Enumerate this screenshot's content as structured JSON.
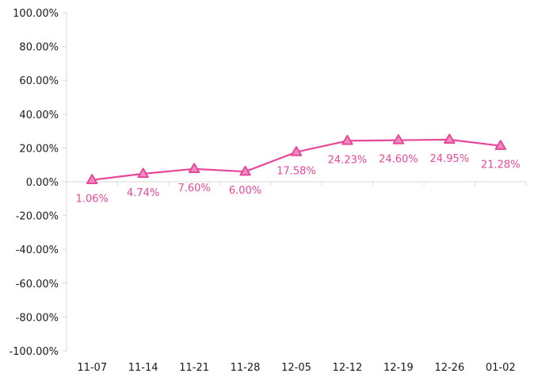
{
  "chart_data": {
    "type": "line",
    "categories": [
      "11-07",
      "11-14",
      "11-21",
      "11-28",
      "12-05",
      "12-12",
      "12-19",
      "12-26",
      "01-02"
    ],
    "series": [
      {
        "values": [
          1.06,
          4.74,
          7.6,
          6.0,
          17.58,
          24.23,
          24.6,
          24.95,
          21.28
        ],
        "labels": [
          "1.06%",
          "4.74%",
          "7.60%",
          "6.00%",
          "17.58%",
          "24.23%",
          "24.60%",
          "24.95%",
          "21.28%"
        ]
      }
    ],
    "y_ticks": [
      "100.00%",
      "80.00%",
      "60.00%",
      "40.00%",
      "20.00%",
      "0.00%",
      "-20.00%",
      "-40.00%",
      "-60.00%",
      "-80.00%",
      "-100.00%"
    ],
    "ylim": [
      -100,
      100
    ],
    "y_tick_step": 20,
    "marker": "triangle",
    "line_color": "#e8489a",
    "marker_fill": "#f08cc0",
    "axis_color": "#d9d9d9",
    "grid": false,
    "legend": "none",
    "title": "",
    "xlabel": "",
    "ylabel": ""
  }
}
